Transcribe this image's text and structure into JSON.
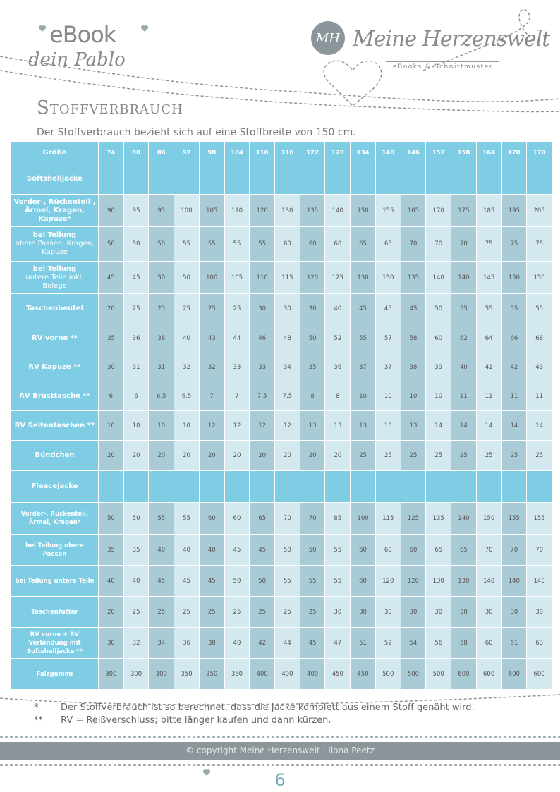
{
  "header": {
    "ebook": "eBook",
    "subtitle": "dein Pablo",
    "logo": "MH",
    "brand": "Meine Herzenswelt",
    "brand_sub": "eBooks & Schnittmuster"
  },
  "title": "Stoffverbrauch",
  "intro": "Der Stoffverbrauch bezieht sich auf eine Stoffbreite von 150 cm.",
  "table": {
    "size_label": "Größe",
    "sizes": [
      74,
      80,
      86,
      92,
      98,
      104,
      110,
      116,
      122,
      128,
      134,
      140,
      146,
      152,
      158,
      164,
      170,
      170
    ],
    "sections": [
      {
        "name": "Softshelljacke",
        "rows": [
          {
            "label": "Vorder-, Rückenteil , Ärmel, Kragen, Kapuze*",
            "values": [
              90,
              95,
              95,
              100,
              105,
              110,
              120,
              130,
              135,
              140,
              150,
              155,
              165,
              170,
              175,
              185,
              195,
              205
            ]
          },
          {
            "label": "bei Teilung",
            "note": "obere Passen, Kragen, Kapuze",
            "values": [
              50,
              50,
              50,
              55,
              55,
              55,
              55,
              60,
              60,
              60,
              65,
              65,
              70,
              70,
              70,
              75,
              75,
              75
            ]
          },
          {
            "label": "bei Teilung",
            "note": "untere Teile inkl. Belege",
            "values": [
              45,
              45,
              50,
              50,
              100,
              105,
              110,
              115,
              120,
              125,
              130,
              130,
              135,
              140,
              140,
              145,
              150,
              150
            ]
          },
          {
            "label": "Taschenbeutel",
            "values": [
              20,
              25,
              25,
              25,
              25,
              25,
              30,
              30,
              30,
              40,
              45,
              45,
              45,
              50,
              55,
              55,
              55,
              55
            ]
          },
          {
            "label": "RV vorne **",
            "values": [
              35,
              36,
              38,
              40,
              43,
              44,
              46,
              48,
              50,
              52,
              55,
              57,
              58,
              60,
              62,
              64,
              66,
              68
            ]
          },
          {
            "label": "RV Kapuze **",
            "values": [
              30,
              31,
              31,
              32,
              32,
              33,
              33,
              34,
              35,
              36,
              37,
              37,
              38,
              39,
              40,
              41,
              42,
              43
            ]
          },
          {
            "label": "RV Brusttasche **",
            "values": [
              6,
              6,
              "6,5",
              "6,5",
              7,
              7,
              "7,5",
              "7,5",
              8,
              8,
              10,
              10,
              10,
              10,
              11,
              11,
              11,
              11
            ]
          },
          {
            "label": "RV Seitentaschen **",
            "values": [
              10,
              10,
              10,
              10,
              12,
              12,
              12,
              12,
              13,
              13,
              13,
              13,
              13,
              14,
              14,
              14,
              14,
              14
            ]
          },
          {
            "label": "Bündchen",
            "values": [
              20,
              20,
              20,
              20,
              20,
              20,
              20,
              20,
              20,
              20,
              25,
              25,
              25,
              25,
              25,
              25,
              25,
              25
            ]
          }
        ]
      },
      {
        "name": "Fleecejacke",
        "rows": [
          {
            "label": "Vorder-, Rückenteil, Ärmel, Kragen*",
            "values": [
              50,
              50,
              55,
              55,
              60,
              60,
              65,
              70,
              70,
              85,
              100,
              115,
              125,
              135,
              140,
              150,
              155,
              155
            ]
          },
          {
            "label": "bei Teilung obere Passen",
            "values": [
              35,
              35,
              40,
              40,
              40,
              45,
              45,
              50,
              50,
              55,
              60,
              60,
              60,
              65,
              65,
              70,
              70,
              70
            ]
          },
          {
            "label": "bei Teilung untere Teile",
            "values": [
              40,
              40,
              45,
              45,
              45,
              50,
              50,
              55,
              55,
              55,
              60,
              120,
              120,
              130,
              130,
              140,
              140,
              140
            ]
          },
          {
            "label": "Taschenfutter",
            "values": [
              20,
              25,
              25,
              25,
              25,
              25,
              25,
              25,
              25,
              30,
              30,
              30,
              30,
              30,
              30,
              30,
              30,
              30
            ]
          },
          {
            "label": "RV vorne + RV Verbindung mit Softshelljacke **",
            "values": [
              30,
              32,
              34,
              36,
              38,
              40,
              42,
              44,
              45,
              47,
              51,
              52,
              54,
              56,
              58,
              60,
              61,
              63
            ]
          },
          {
            "label": "Falzgummi",
            "values": [
              300,
              300,
              300,
              350,
              350,
              350,
              400,
              400,
              400,
              450,
              450,
              500,
              500,
              500,
              600,
              600,
              600,
              600
            ]
          }
        ]
      }
    ]
  },
  "footnotes": [
    {
      "mark": "*",
      "text": "Der Stoffverbrauch ist so berechnet, dass die Jacke komplett aus einem Stoff genäht  wird."
    },
    {
      "mark": "**",
      "text": "RV = Reißverschluss; bitte länger kaufen und dann kürzen."
    }
  ],
  "footer": {
    "copyright": "©  copyright Meine Herzenswelt | Ilona Peetz",
    "page": "6"
  }
}
